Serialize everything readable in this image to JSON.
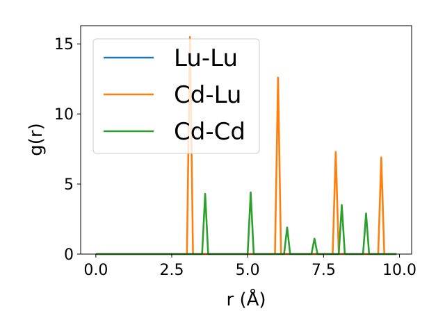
{
  "chart_data": {
    "type": "line",
    "title": "",
    "xlabel": "r (Å)",
    "ylabel": "g(r)",
    "xlim": [
      -0.5,
      10.4
    ],
    "ylim": [
      0,
      16.3
    ],
    "xticks": [
      0.0,
      2.5,
      5.0,
      7.5,
      10.0
    ],
    "xtick_labels": [
      "0.0",
      "2.5",
      "5.0",
      "7.5",
      "10.0"
    ],
    "yticks": [
      0,
      5,
      10,
      15
    ],
    "ytick_labels": [
      "0",
      "5",
      "10",
      "15"
    ],
    "grid": false,
    "legend_position": "top-left",
    "series": [
      {
        "name": "Lu-Lu",
        "color": "#1f77b4",
        "x": [
          0.0,
          9.9
        ],
        "y": [
          0,
          0
        ]
      },
      {
        "name": "Cd-Lu",
        "color": "#ff7f0e",
        "x": [
          0.0,
          3.0,
          3.1,
          3.2,
          5.9,
          6.0,
          6.1,
          7.8,
          7.9,
          8.0,
          9.3,
          9.4,
          9.5,
          9.9
        ],
        "y": [
          0,
          0,
          15.5,
          0,
          0,
          12.6,
          0,
          0,
          7.3,
          0,
          0,
          6.9,
          0,
          0
        ]
      },
      {
        "name": "Cd-Cd",
        "color": "#2ca02c",
        "x": [
          0.0,
          3.5,
          3.6,
          3.7,
          5.0,
          5.1,
          5.2,
          6.2,
          6.3,
          6.4,
          7.1,
          7.2,
          7.3,
          8.0,
          8.1,
          8.2,
          8.8,
          8.9,
          9.0,
          9.9
        ],
        "y": [
          0,
          0,
          4.3,
          0,
          0,
          4.4,
          0,
          0,
          1.9,
          0,
          0,
          1.1,
          0,
          0,
          3.5,
          0,
          0,
          2.9,
          0,
          0
        ]
      }
    ]
  }
}
